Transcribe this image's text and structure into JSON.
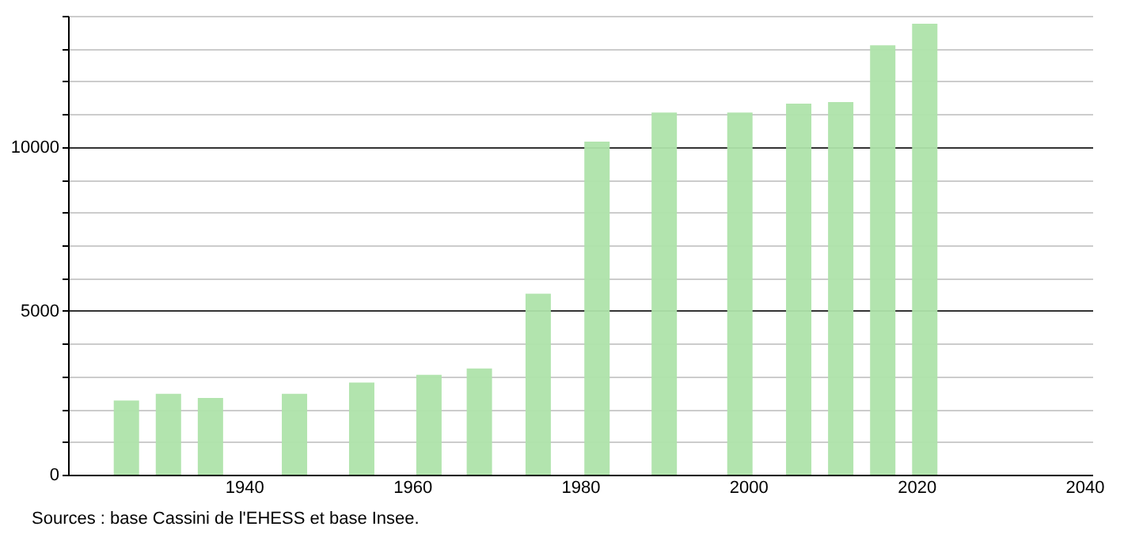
{
  "chart_data": {
    "type": "bar",
    "x": [
      1926,
      1931,
      1936,
      1946,
      1954,
      1962,
      1968,
      1975,
      1982,
      1990,
      1999,
      2006,
      2011,
      2016,
      2021
    ],
    "values": [
      2260,
      2470,
      2340,
      2470,
      2810,
      3050,
      3240,
      5520,
      10160,
      11050,
      11050,
      11320,
      11370,
      13100,
      13760
    ],
    "color": "#aee3aa",
    "xlim": [
      1920,
      2040
    ],
    "xticks": [
      1940,
      1960,
      1980,
      2000,
      2020,
      2040
    ],
    "ylim": [
      0,
      14000
    ],
    "yticks": [
      0,
      {
        "value": 1000,
        "label": null
      },
      {
        "value": 2000,
        "label": null
      },
      {
        "value": 3000,
        "label": null
      },
      {
        "value": 4000,
        "label": null
      },
      5000,
      {
        "value": 6000,
        "label": null
      },
      {
        "value": 7000,
        "label": null
      },
      {
        "value": 8000,
        "label": null
      },
      {
        "value": 9000,
        "label": null
      },
      10000,
      {
        "value": 11000,
        "label": null
      },
      {
        "value": 12000,
        "label": null
      },
      {
        "value": 13000,
        "label": null
      },
      {
        "value": 14000,
        "label": null
      }
    ],
    "grid": "y",
    "annotations": [
      "Sources : base Cassini de l'EHESS et base Insee."
    ]
  }
}
